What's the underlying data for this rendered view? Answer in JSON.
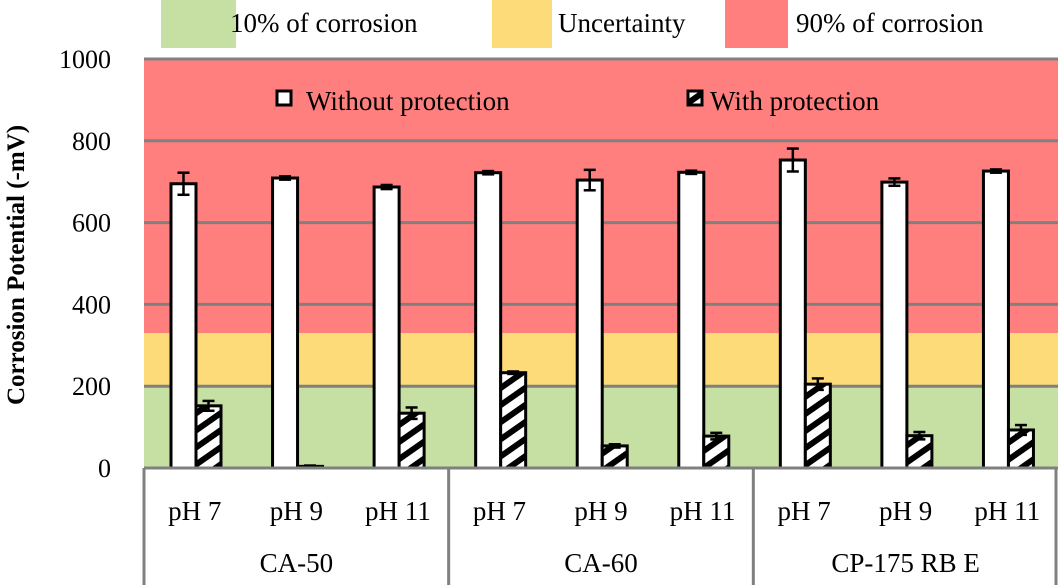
{
  "chart_data": {
    "type": "bar",
    "title": "",
    "xlabel": "",
    "ylabel": "Corrosion Potential (-mV)",
    "ylim": [
      0,
      1000
    ],
    "yticks": [
      0,
      200,
      400,
      600,
      800,
      1000
    ],
    "grid": true,
    "groups": [
      "CA-50",
      "CA-60",
      "CP-175 RB E"
    ],
    "categories": [
      "pH 7",
      "pH 9",
      "pH 11",
      "pH 7",
      "pH 9",
      "pH 11",
      "pH 7",
      "pH 9",
      "pH 11"
    ],
    "series": [
      {
        "name": "Without protection",
        "pattern": "solid-white",
        "values": [
          695,
          709,
          687,
          722,
          704,
          723,
          753,
          699,
          726
        ],
        "errors": [
          27,
          4,
          5,
          4,
          25,
          4,
          28,
          9,
          4
        ]
      },
      {
        "name": "With protection",
        "pattern": "diagonal-hatch",
        "values": [
          152,
          4,
          134,
          233,
          54,
          78,
          205,
          79,
          93
        ],
        "errors": [
          12,
          2,
          14,
          3,
          4,
          8,
          14,
          9,
          12
        ]
      }
    ],
    "zones": [
      {
        "name": "10% of corrosion",
        "from": 0,
        "to": 200,
        "color": "#c6e0a4"
      },
      {
        "name": "Uncertainty",
        "from": 200,
        "to": 330,
        "color": "#fedb79"
      },
      {
        "name": "90% of corrosion",
        "from": 330,
        "to": 1000,
        "color": "#fe7f7e"
      }
    ],
    "zone_legend_placement": "top",
    "series_legend_placement": "top-inside"
  }
}
